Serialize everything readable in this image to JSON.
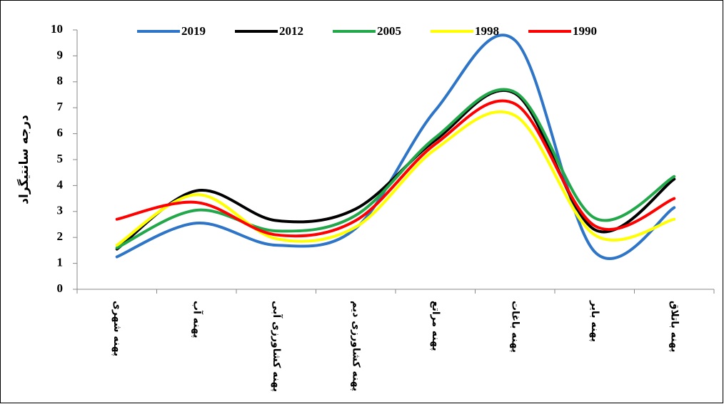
{
  "chart_data": {
    "type": "line",
    "smooth": true,
    "y_label": "درجه سانتیگراد",
    "categories": [
      "پهنه شهری",
      "پهنه آب",
      "پهنه کشاورزی آبی",
      "پهنه کشاورزی دیم",
      "پهنه مراتع",
      "پهنه باغات",
      "پهنه بایر",
      "پهنه باتلاق"
    ],
    "series": [
      {
        "name": "2019",
        "color": "#2e75c8",
        "values": [
          1.25,
          2.55,
          1.7,
          2.35,
          6.9,
          9.6,
          1.45,
          3.15
        ]
      },
      {
        "name": "2012",
        "color": "#000000",
        "values": [
          1.55,
          3.8,
          2.65,
          3.1,
          5.75,
          7.55,
          2.3,
          4.25
        ]
      },
      {
        "name": "2005",
        "color": "#22a84a",
        "values": [
          1.6,
          3.05,
          2.25,
          2.85,
          5.85,
          7.6,
          2.75,
          4.35
        ]
      },
      {
        "name": "1998",
        "color": "#ffff00",
        "values": [
          1.7,
          3.65,
          1.95,
          2.4,
          5.4,
          6.7,
          2.1,
          2.7
        ]
      },
      {
        "name": "1990",
        "color": "#ff0000",
        "values": [
          2.7,
          3.35,
          2.1,
          2.65,
          5.6,
          7.15,
          2.45,
          3.5
        ]
      }
    ],
    "ylim": [
      0,
      10
    ],
    "yticks": [
      0,
      1,
      2,
      3,
      4,
      5,
      6,
      7,
      8,
      9,
      10
    ],
    "grid": false,
    "legend": "top"
  }
}
